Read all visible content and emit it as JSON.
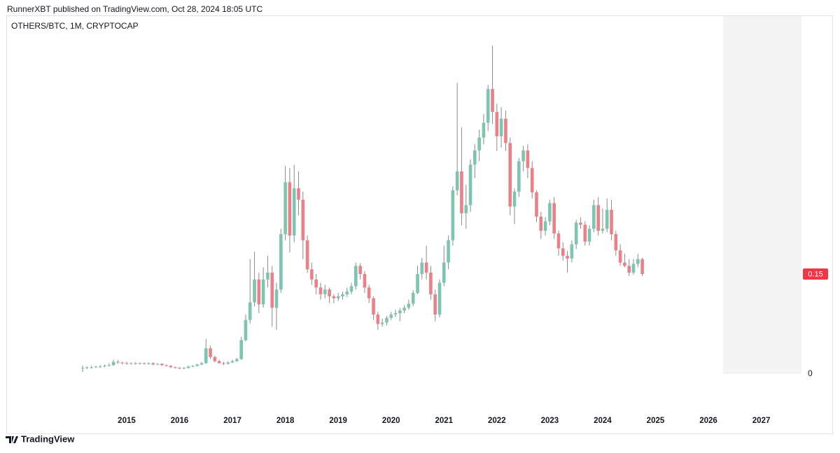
{
  "header": {
    "publisher": "RunnerXBT published on TradingView.com, Oct 28, 2024 18:05 UTC"
  },
  "footer": {
    "brand": "TradingView"
  },
  "chart_data": {
    "type": "candlestick",
    "title": "OTHERS/BTC, 1M, CRYPTOCAP",
    "up_color": "#7cc5b1",
    "down_color": "#ec8088",
    "wick_color": "#8a8a8a",
    "xlim": [
      2012.737,
      2027.76
    ],
    "xticks": [
      2015,
      2016,
      2017,
      2018,
      2019,
      2020,
      2021,
      2022,
      2023,
      2024,
      2025,
      2026,
      2027
    ],
    "ylim": [
      -0.057,
      0.531
    ],
    "yticks": [
      0
    ],
    "last_label": "0.15",
    "x": [
      2014.167,
      2014.25,
      2014.333,
      2014.417,
      2014.5,
      2014.583,
      2014.667,
      2014.75,
      2014.833,
      2014.917,
      2015,
      2015.083,
      2015.167,
      2015.25,
      2015.333,
      2015.417,
      2015.5,
      2015.583,
      2015.667,
      2015.75,
      2015.833,
      2015.917,
      2016,
      2016.083,
      2016.167,
      2016.25,
      2016.333,
      2016.417,
      2016.5,
      2016.583,
      2016.667,
      2016.75,
      2016.833,
      2016.917,
      2017,
      2017.083,
      2017.167,
      2017.25,
      2017.333,
      2017.417,
      2017.5,
      2017.583,
      2017.667,
      2017.75,
      2017.833,
      2017.917,
      2018,
      2018.083,
      2018.167,
      2018.25,
      2018.333,
      2018.417,
      2018.5,
      2018.583,
      2018.667,
      2018.75,
      2018.833,
      2018.917,
      2019,
      2019.083,
      2019.167,
      2019.25,
      2019.333,
      2019.417,
      2019.5,
      2019.583,
      2019.667,
      2019.75,
      2019.833,
      2019.917,
      2020,
      2020.083,
      2020.167,
      2020.25,
      2020.333,
      2020.417,
      2020.5,
      2020.583,
      2020.667,
      2020.75,
      2020.833,
      2020.917,
      2021,
      2021.083,
      2021.167,
      2021.25,
      2021.333,
      2021.417,
      2021.5,
      2021.583,
      2021.667,
      2021.75,
      2021.833,
      2021.917,
      2022,
      2022.083,
      2022.167,
      2022.25,
      2022.333,
      2022.417,
      2022.5,
      2022.583,
      2022.667,
      2022.75,
      2022.833,
      2022.917,
      2023,
      2023.083,
      2023.167,
      2023.25,
      2023.333,
      2023.417,
      2023.5,
      2023.583,
      2023.667,
      2023.75,
      2023.833,
      2023.917,
      2024,
      2024.083,
      2024.167,
      2024.25,
      2024.333,
      2024.417,
      2024.5,
      2024.583,
      2024.667,
      2024.75
    ],
    "open": [
      0.008,
      0.009,
      0.01,
      0.01,
      0.011,
      0.011,
      0.012,
      0.013,
      0.018,
      0.017,
      0.016,
      0.015,
      0.016,
      0.015,
      0.016,
      0.015,
      0.016,
      0.014,
      0.015,
      0.013,
      0.012,
      0.01,
      0.009,
      0.008,
      0.009,
      0.011,
      0.012,
      0.014,
      0.016,
      0.038,
      0.025,
      0.019,
      0.016,
      0.015,
      0.017,
      0.019,
      0.022,
      0.05,
      0.08,
      0.106,
      0.14,
      0.103,
      0.14,
      0.15,
      0.098,
      0.125,
      0.207,
      0.284,
      0.205,
      0.275,
      0.258,
      0.198,
      0.155,
      0.14,
      0.128,
      0.118,
      0.125,
      0.115,
      0.112,
      0.115,
      0.118,
      0.122,
      0.13,
      0.16,
      0.148,
      0.128,
      0.112,
      0.088,
      0.074,
      0.076,
      0.083,
      0.088,
      0.09,
      0.094,
      0.098,
      0.104,
      0.12,
      0.148,
      0.165,
      0.15,
      0.118,
      0.088,
      0.135,
      0.165,
      0.198,
      0.272,
      0.3,
      0.238,
      0.25,
      0.31,
      0.331,
      0.35,
      0.372,
      0.422,
      0.388,
      0.352,
      0.378,
      0.342,
      0.248,
      0.27,
      0.315,
      0.331,
      0.305,
      0.269,
      0.233,
      0.212,
      0.226,
      0.253,
      0.208,
      0.186,
      0.175,
      0.171,
      0.192,
      0.224,
      0.221,
      0.196,
      0.215,
      0.25,
      0.212,
      0.215,
      0.243,
      0.207,
      0.183,
      0.165,
      0.16,
      0.15,
      0.163,
      0.17
    ],
    "high": [
      0.012,
      0.011,
      0.012,
      0.012,
      0.013,
      0.014,
      0.016,
      0.021,
      0.021,
      0.018,
      0.018,
      0.017,
      0.017,
      0.017,
      0.017,
      0.017,
      0.017,
      0.016,
      0.016,
      0.014,
      0.013,
      0.011,
      0.01,
      0.01,
      0.012,
      0.013,
      0.015,
      0.018,
      0.052,
      0.042,
      0.027,
      0.021,
      0.018,
      0.019,
      0.021,
      0.024,
      0.055,
      0.088,
      0.17,
      0.181,
      0.15,
      0.158,
      0.175,
      0.16,
      0.135,
      0.215,
      0.308,
      0.305,
      0.31,
      0.3,
      0.27,
      0.205,
      0.165,
      0.148,
      0.135,
      0.132,
      0.128,
      0.118,
      0.12,
      0.122,
      0.128,
      0.135,
      0.165,
      0.164,
      0.152,
      0.132,
      0.115,
      0.092,
      0.082,
      0.086,
      0.092,
      0.095,
      0.098,
      0.102,
      0.11,
      0.124,
      0.16,
      0.172,
      0.19,
      0.16,
      0.125,
      0.14,
      0.19,
      0.205,
      0.278,
      0.431,
      0.365,
      0.28,
      0.318,
      0.34,
      0.362,
      0.385,
      0.428,
      0.486,
      0.4,
      0.395,
      0.39,
      0.35,
      0.275,
      0.32,
      0.338,
      0.34,
      0.315,
      0.272,
      0.24,
      0.232,
      0.258,
      0.262,
      0.212,
      0.195,
      0.182,
      0.198,
      0.228,
      0.232,
      0.226,
      0.22,
      0.258,
      0.262,
      0.245,
      0.26,
      0.258,
      0.212,
      0.192,
      0.178,
      0.17,
      0.17,
      0.178,
      0.172
    ],
    "low": [
      0.003,
      0.007,
      0.008,
      0.009,
      0.009,
      0.01,
      0.011,
      0.012,
      0.015,
      0.014,
      0.014,
      0.014,
      0.014,
      0.014,
      0.014,
      0.014,
      0.013,
      0.013,
      0.012,
      0.011,
      0.009,
      0.008,
      0.007,
      0.007,
      0.008,
      0.01,
      0.011,
      0.013,
      0.015,
      0.022,
      0.017,
      0.015,
      0.013,
      0.014,
      0.016,
      0.018,
      0.021,
      0.048,
      0.075,
      0.1,
      0.09,
      0.098,
      0.128,
      0.07,
      0.065,
      0.12,
      0.198,
      0.18,
      0.195,
      0.235,
      0.17,
      0.15,
      0.132,
      0.118,
      0.11,
      0.112,
      0.105,
      0.105,
      0.108,
      0.11,
      0.114,
      0.118,
      0.125,
      0.14,
      0.12,
      0.105,
      0.08,
      0.065,
      0.07,
      0.072,
      0.08,
      0.084,
      0.078,
      0.09,
      0.095,
      0.1,
      0.118,
      0.14,
      0.14,
      0.11,
      0.078,
      0.084,
      0.13,
      0.155,
      0.19,
      0.265,
      0.22,
      0.215,
      0.24,
      0.29,
      0.315,
      0.34,
      0.36,
      0.37,
      0.33,
      0.335,
      0.33,
      0.235,
      0.222,
      0.262,
      0.3,
      0.29,
      0.26,
      0.225,
      0.2,
      0.205,
      0.22,
      0.2,
      0.175,
      0.168,
      0.15,
      0.165,
      0.185,
      0.215,
      0.19,
      0.19,
      0.21,
      0.205,
      0.208,
      0.21,
      0.198,
      0.175,
      0.16,
      0.158,
      0.145,
      0.147,
      0.158,
      0.145
    ],
    "close": [
      0.009,
      0.01,
      0.01,
      0.011,
      0.011,
      0.012,
      0.013,
      0.018,
      0.017,
      0.016,
      0.015,
      0.016,
      0.015,
      0.016,
      0.015,
      0.016,
      0.014,
      0.015,
      0.013,
      0.012,
      0.01,
      0.009,
      0.008,
      0.009,
      0.011,
      0.012,
      0.014,
      0.016,
      0.038,
      0.025,
      0.019,
      0.016,
      0.015,
      0.017,
      0.019,
      0.022,
      0.05,
      0.08,
      0.106,
      0.14,
      0.103,
      0.14,
      0.15,
      0.098,
      0.125,
      0.207,
      0.284,
      0.205,
      0.275,
      0.258,
      0.198,
      0.155,
      0.14,
      0.128,
      0.118,
      0.125,
      0.115,
      0.112,
      0.115,
      0.118,
      0.122,
      0.13,
      0.16,
      0.148,
      0.128,
      0.112,
      0.088,
      0.074,
      0.076,
      0.083,
      0.088,
      0.09,
      0.094,
      0.098,
      0.104,
      0.12,
      0.148,
      0.165,
      0.15,
      0.118,
      0.088,
      0.135,
      0.165,
      0.198,
      0.272,
      0.3,
      0.238,
      0.25,
      0.31,
      0.331,
      0.35,
      0.372,
      0.422,
      0.388,
      0.352,
      0.378,
      0.342,
      0.248,
      0.27,
      0.315,
      0.331,
      0.305,
      0.269,
      0.233,
      0.212,
      0.226,
      0.253,
      0.208,
      0.186,
      0.175,
      0.171,
      0.192,
      0.224,
      0.221,
      0.196,
      0.215,
      0.25,
      0.212,
      0.215,
      0.243,
      0.207,
      0.183,
      0.165,
      0.16,
      0.15,
      0.163,
      0.17,
      0.148
    ]
  }
}
